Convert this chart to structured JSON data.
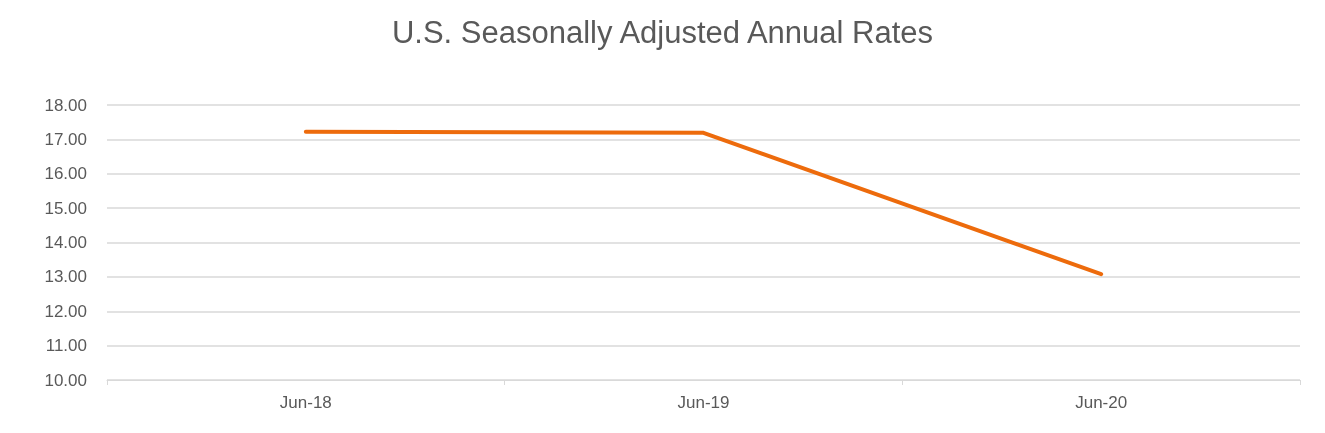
{
  "chart_data": {
    "type": "line",
    "title": "U.S. Seasonally Adjusted Annual Rates",
    "categories": [
      "Jun-18",
      "Jun-19",
      "Jun-20"
    ],
    "series": [
      {
        "color": "#ed6b0c",
        "values": [
          17.22,
          17.19,
          13.08
        ]
      }
    ],
    "ylim": [
      10,
      18
    ],
    "yticks": [
      {
        "value": 10,
        "label": "10.00"
      },
      {
        "value": 11,
        "label": "11.00"
      },
      {
        "value": 12,
        "label": "12.00"
      },
      {
        "value": 13,
        "label": "13.00"
      },
      {
        "value": 14,
        "label": "14.00"
      },
      {
        "value": 15,
        "label": "15.00"
      },
      {
        "value": 16,
        "label": "16.00"
      },
      {
        "value": 17,
        "label": "17.00"
      },
      {
        "value": 18,
        "label": "18.00"
      }
    ],
    "grid": "y",
    "marker": "none",
    "line_style": "solid"
  }
}
